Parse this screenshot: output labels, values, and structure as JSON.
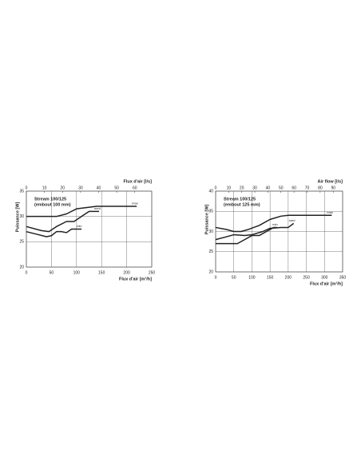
{
  "chart_data": [
    {
      "type": "line",
      "y_label": "Puissance [W]",
      "x_label": "Flux d'air [m³/h]",
      "x2_label": "Flux d'air [l/s]",
      "annotation": [
        "Stream 100/125",
        "(embout 100 mm)"
      ],
      "xlim": [
        0,
        250
      ],
      "xticks": [
        0,
        50,
        100,
        150,
        200,
        250
      ],
      "x2lim": [
        0,
        69.4
      ],
      "x2ticks": [
        0,
        10,
        20,
        30,
        40,
        50,
        60
      ],
      "ylim": [
        20,
        35
      ],
      "yticks": [
        20,
        25,
        30,
        35
      ],
      "grid": true,
      "series": [
        {
          "name": "max",
          "color": "#222222",
          "x": [
            0,
            50,
            60,
            80,
            100,
            140,
            220
          ],
          "values": [
            30,
            30,
            30,
            30.5,
            31.5,
            32,
            32
          ]
        },
        {
          "name": "med",
          "color": "#222222",
          "x": [
            0,
            30,
            45,
            60,
            80,
            95,
            110,
            125,
            145
          ],
          "values": [
            28,
            27.2,
            27,
            28,
            29,
            29,
            30,
            31,
            31
          ]
        },
        {
          "name": "min",
          "color": "#222222",
          "x": [
            0,
            20,
            40,
            50,
            60,
            70,
            80,
            90,
            110
          ],
          "values": [
            27,
            26.5,
            26,
            26.2,
            27,
            27,
            26.8,
            27.5,
            27.5
          ]
        }
      ]
    },
    {
      "type": "line",
      "y_label": "Puissance [W]",
      "x_label": "Flux d'air [m³/h]",
      "x2_label": "Air flow [l/s]",
      "annotation": [
        "Stream 100/125",
        "(embout 125 mm)"
      ],
      "xlim": [
        0,
        350
      ],
      "xticks": [
        0,
        50,
        100,
        150,
        200,
        250,
        300,
        350
      ],
      "x2lim": [
        0,
        97.2
      ],
      "x2ticks": [
        0,
        10,
        20,
        30,
        40,
        50,
        60,
        70,
        80,
        90
      ],
      "ylim": [
        20,
        40
      ],
      "yticks": [
        20,
        25,
        30,
        35,
        40
      ],
      "grid": true,
      "series": [
        {
          "name": "max",
          "color": "#222222",
          "x": [
            0,
            30,
            50,
            70,
            90,
            120,
            150,
            180,
            200,
            250,
            320
          ],
          "values": [
            31,
            30.5,
            30,
            30,
            30.5,
            31.5,
            33,
            33.8,
            34,
            34,
            34
          ]
        },
        {
          "name": "med",
          "color": "#222222",
          "x": [
            0,
            30,
            50,
            80,
            100,
            130,
            150,
            180,
            200,
            215
          ],
          "values": [
            28,
            28.7,
            29.2,
            29,
            29.2,
            30,
            30.8,
            31,
            31,
            32
          ]
        },
        {
          "name": "min",
          "color": "#222222",
          "x": [
            0,
            30,
            60,
            80,
            100,
            120,
            140,
            160,
            170
          ],
          "values": [
            27,
            27,
            27,
            28,
            29,
            29,
            30,
            31,
            31
          ]
        }
      ]
    }
  ]
}
